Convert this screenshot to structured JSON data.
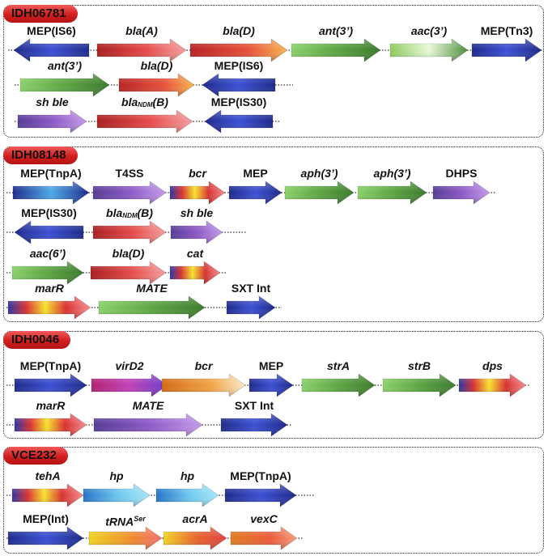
{
  "colors": {
    "blue": [
      "#2733a6",
      "#3a4fd0"
    ],
    "red": [
      "#c42f2f",
      "#f06a6a"
    ],
    "orange": [
      "#e0781f",
      "#f7c25a"
    ],
    "green": [
      "#4f9a39",
      "#a4df79"
    ],
    "lightgreen": [
      "#7fbd4d",
      "#d9f3c2"
    ],
    "purple": [
      "#5b3e9c",
      "#b57de0"
    ],
    "heat": [
      "#2733a6",
      "#f2e02a"
    ],
    "cyan": [
      "#2f86d1",
      "#8fdcf3"
    ],
    "yellow": [
      "#e5c51d",
      "#f06a6a"
    ],
    "panel_badge": "#d42525"
  },
  "panels": [
    {
      "name": "IDH06781",
      "rows": [
        [
          {
            "label": "MEP(IS6)",
            "italic": false,
            "dir": "left",
            "color": "blue"
          },
          {
            "label": "bla(A)",
            "italic": true,
            "dir": "right",
            "color": "red"
          },
          {
            "label": "bla(D)",
            "italic": true,
            "dir": "right",
            "color": "redorange"
          },
          {
            "label": "ant(3’)",
            "italic": true,
            "dir": "right",
            "color": "green"
          },
          {
            "label": "aac(3’)",
            "italic": true,
            "dir": "right",
            "color": "lightgreen"
          },
          {
            "label": "MEP(Tn3)",
            "italic": false,
            "dir": "right",
            "color": "blue"
          }
        ],
        [
          {
            "label": "ant(3’)",
            "italic": true,
            "dir": "right",
            "color": "green"
          },
          {
            "label": "bla(D)",
            "italic": true,
            "dir": "right",
            "color": "redorange"
          },
          {
            "label": "MEP(IS6)",
            "italic": false,
            "dir": "left",
            "color": "blue"
          }
        ],
        [
          {
            "label": "sh ble",
            "italic": true,
            "dir": "right",
            "color": "purple"
          },
          {
            "label": "bla",
            "sub": "NDM",
            "suffix": "(B)",
            "italic": true,
            "dir": "right",
            "color": "red"
          },
          {
            "label": "MEP(IS30)",
            "italic": false,
            "dir": "left",
            "color": "blue"
          }
        ]
      ]
    },
    {
      "name": "IDH08148",
      "rows": [
        [
          {
            "label": "MEP(TnpA)",
            "italic": false,
            "dir": "right",
            "color": "bluelight"
          },
          {
            "label": "T4SS",
            "italic": false,
            "dir": "right",
            "color": "purple"
          },
          {
            "label": "bcr",
            "italic": true,
            "dir": "right",
            "color": "heat"
          },
          {
            "label": "MEP",
            "italic": false,
            "dir": "right",
            "color": "blue"
          },
          {
            "label": "aph(3’)",
            "italic": true,
            "dir": "right",
            "color": "green"
          },
          {
            "label": "aph(3’)",
            "italic": true,
            "dir": "right",
            "color": "green"
          },
          {
            "label": "DHPS",
            "italic": false,
            "dir": "right",
            "color": "purple"
          }
        ],
        [
          {
            "label": "MEP(IS30)",
            "italic": false,
            "dir": "left",
            "color": "blue"
          },
          {
            "label": "bla",
            "sub": "NDM",
            "suffix": "(B)",
            "italic": true,
            "dir": "right",
            "color": "red"
          },
          {
            "label": "sh ble",
            "italic": true,
            "dir": "right",
            "color": "purple"
          }
        ],
        [
          {
            "label": "aac(6’)",
            "italic": true,
            "dir": "right",
            "color": "green"
          },
          {
            "label": "bla(D)",
            "italic": true,
            "dir": "right",
            "color": "red"
          },
          {
            "label": "cat",
            "italic": true,
            "dir": "right",
            "color": "heat"
          }
        ],
        [
          {
            "label": "marR",
            "italic": true,
            "dir": "right",
            "color": "heat"
          },
          {
            "label": "MATE",
            "italic": true,
            "dir": "right",
            "color": "green"
          },
          {
            "label": "SXT Int",
            "italic": false,
            "dir": "right",
            "color": "blue"
          }
        ]
      ]
    },
    {
      "name": "IDH0046",
      "rows": [
        [
          {
            "label": "MEP(TnpA)",
            "italic": false,
            "dir": "right",
            "color": "blue"
          },
          {
            "label": "virD2",
            "italic": true,
            "dir": "right",
            "color": "magenta"
          },
          {
            "label": "bcr",
            "italic": true,
            "dir": "right",
            "color": "orange"
          },
          {
            "label": "MEP",
            "italic": false,
            "dir": "right",
            "color": "blue"
          },
          {
            "label": "strA",
            "italic": true,
            "dir": "right",
            "color": "green"
          },
          {
            "label": "strB",
            "italic": true,
            "dir": "right",
            "color": "green"
          },
          {
            "label": "dps",
            "italic": true,
            "dir": "right",
            "color": "heat"
          }
        ],
        [
          {
            "label": "marR",
            "italic": true,
            "dir": "right",
            "color": "heat"
          },
          {
            "label": "MATE",
            "italic": true,
            "dir": "right",
            "color": "purple"
          },
          {
            "label": "SXT Int",
            "italic": false,
            "dir": "right",
            "color": "blue"
          }
        ]
      ]
    },
    {
      "name": "VCE232",
      "rows": [
        [
          {
            "label": "tehA",
            "italic": true,
            "dir": "right",
            "color": "heat"
          },
          {
            "label": "hp",
            "italic": true,
            "dir": "right",
            "color": "cyan"
          },
          {
            "label": "hp",
            "italic": true,
            "dir": "right",
            "color": "cyan"
          },
          {
            "label": "MEP(TnpA)",
            "italic": false,
            "dir": "right",
            "color": "blue"
          }
        ],
        [
          {
            "label": "MEP(Int)",
            "italic": false,
            "dir": "right",
            "color": "blue"
          },
          {
            "label": "tRNA",
            "sup": "Ser",
            "italic": true,
            "dir": "right",
            "color": "yellow"
          },
          {
            "label": "acrA",
            "italic": true,
            "dir": "right",
            "color": "yellowred"
          },
          {
            "label": "vexC",
            "italic": true,
            "dir": "right",
            "color": "orangered"
          }
        ]
      ]
    }
  ]
}
